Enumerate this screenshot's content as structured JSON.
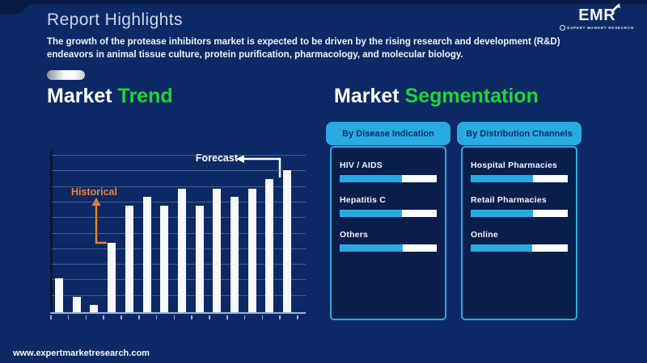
{
  "theme": {
    "bg": "#0d2965",
    "bg-dark": "#081c45",
    "panel-bg": "#0a1e4c",
    "cyan": "#29abe2",
    "cyan-dark-text": "#0a2b5e",
    "green": "#1ed537",
    "orange": "#e8823c",
    "bar-white": "#f6f8fc",
    "grid-line": "#55709f",
    "axis-light": "#9db1d8",
    "axis-dark": "#0a1634",
    "title-color": "#c9d6ec",
    "text-white": "#eef2f9"
  },
  "header": {
    "title": "Report Highlights",
    "logo": {
      "name": "EMR",
      "tagline": "EXPERT MARKET RESEARCH"
    }
  },
  "intro": {
    "lines": [
      "The growth of the protease inhibitors market is expected to be driven by the rising research and development (R&D)",
      "endeavors in animal tissue culture, protein purification, pharmacology, and molecular biology."
    ]
  },
  "trend_section": {
    "title_part1": "Market",
    "title_part2": "Trend"
  },
  "segmentation_section": {
    "title_part1": "Market",
    "title_part2": "Segmentation"
  },
  "chart_data": {
    "type": "bar",
    "title": "Market Trend (historical vs forecast)",
    "x": [
      1,
      2,
      3,
      4,
      5,
      6,
      7,
      8,
      9,
      10,
      11,
      12,
      13,
      14
    ],
    "x_tick_labels": "none shown",
    "y_tick_labels": "none shown",
    "values_pct_of_max": [
      24,
      11,
      5,
      49,
      75,
      81,
      75,
      87,
      75,
      87,
      81,
      87,
      94,
      100
    ],
    "gridline_count": 11,
    "bar_color": "#f6f8fc",
    "annotations": {
      "historical": {
        "text": "Historical",
        "color": "#e8823c",
        "points_to_bar": 4
      },
      "forecast": {
        "text": "Forecast",
        "color": "#ffffff",
        "points_to_bar": 14
      }
    }
  },
  "segmentation": {
    "panels": [
      {
        "header": "By Disease Indication",
        "items": [
          {
            "label": "HIV / AIDS",
            "fill_pct": 64
          },
          {
            "label": "Hepatitis C",
            "fill_pct": 64
          },
          {
            "label": "Others",
            "fill_pct": 65
          }
        ]
      },
      {
        "header": "By Distribution Channels",
        "items": [
          {
            "label": "Hospital Pharmacies",
            "fill_pct": 64
          },
          {
            "label": "Retail Pharmacies",
            "fill_pct": 64
          },
          {
            "label": "Online",
            "fill_pct": 63
          }
        ]
      }
    ]
  },
  "footer": {
    "url": "www.expertmarketresearch.com"
  }
}
